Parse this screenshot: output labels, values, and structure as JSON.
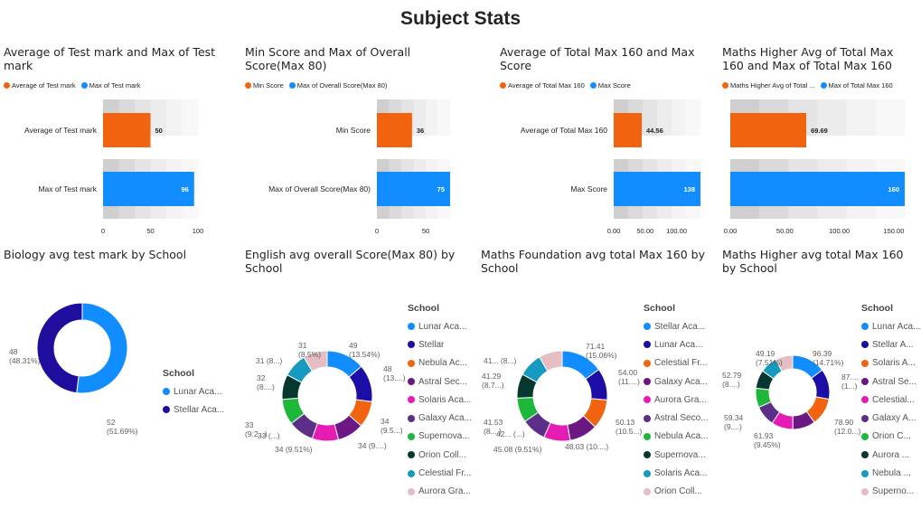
{
  "page_title": "Subject Stats",
  "colors": {
    "orange": "#F2630F",
    "blue": "#118DFF",
    "navy": "#1F0E9E",
    "donut": [
      "#118DFF",
      "#1C0DA6",
      "#F2630F",
      "#6B1884",
      "#E51CB3",
      "#5B2F88",
      "#1DB83A",
      "#06382F",
      "#169AC0",
      "#E5BDC2"
    ]
  },
  "chart_data": [
    {
      "type": "bar",
      "title": "Average of Test mark and Max of Test mark",
      "legend": [
        "Average of Test mark",
        "Max of Test mark"
      ],
      "categories": [
        "Average of Test mark",
        "Max of Test mark"
      ],
      "values": [
        50,
        96
      ],
      "value_labels": [
        "50",
        "96"
      ],
      "ticks": [
        "0",
        "50",
        "100"
      ],
      "tick_values": [
        0,
        50,
        100
      ],
      "xlim": [
        0,
        100
      ],
      "legend_position": "top-left"
    },
    {
      "type": "bar",
      "title": "Min Score and Max of Overall Score(Max 80)",
      "legend": [
        "Min Score",
        "Max of Overall Score(Max 80)"
      ],
      "categories": [
        "Min Score",
        "Max of Overall Score(Max 80)"
      ],
      "values": [
        36,
        75
      ],
      "value_labels": [
        "36",
        "75"
      ],
      "ticks": [
        "0",
        "50"
      ],
      "tick_values": [
        0,
        50
      ],
      "xlim": [
        0,
        75
      ],
      "legend_position": "top-left"
    },
    {
      "type": "bar",
      "title": "Average of Total Max 160 and Max Score",
      "legend": [
        "Average of Total Max 160",
        "Max Score"
      ],
      "categories": [
        "Average of Total Max 160",
        "Max Score"
      ],
      "values": [
        44.56,
        138
      ],
      "value_labels": [
        "44.56",
        "138"
      ],
      "ticks": [
        "0.00",
        "50.00",
        "100.00"
      ],
      "tick_values": [
        0,
        50,
        100
      ],
      "xlim": [
        0,
        138
      ],
      "legend_position": "top-left"
    },
    {
      "type": "bar",
      "title": "Maths Higher Avg of Total Max 160 and Max of Total Max 160",
      "legend": [
        "Maths Higher Avg of Total ...",
        "Max of Total Max 160"
      ],
      "categories": [
        "",
        ""
      ],
      "values": [
        69.69,
        160
      ],
      "value_labels": [
        "69.69",
        "160"
      ],
      "ticks": [
        "0.00",
        "50.00",
        "100.00",
        "150.00"
      ],
      "tick_values": [
        0,
        50,
        100,
        150
      ],
      "xlim": [
        0,
        160
      ],
      "legend_position": "top-left"
    },
    {
      "type": "pie",
      "title": "Biology avg test mark by School",
      "legend_title": "School",
      "legend": [
        "Lunar Aca...",
        "Stellar Aca..."
      ],
      "values": [
        52,
        48
      ],
      "labels": [
        "52\n(51.69%)",
        "48\n(48.31%)"
      ],
      "legend_position": "right"
    },
    {
      "type": "pie",
      "title": "English avg overall Score(Max 80) by School",
      "legend_title": "School",
      "legend": [
        "Lunar Aca...",
        "Stellar",
        "Nebula Ac...",
        "Astral Sec...",
        "Solaris Aca...",
        "Galaxy Aca...",
        "Supernova...",
        "Orion Coll...",
        "Celestial Fr...",
        "Aurora Gra..."
      ],
      "values": [
        49,
        48,
        34,
        34,
        34,
        33,
        33,
        32,
        31,
        31
      ],
      "labels": [
        "49\n(13.54%)",
        "48\n(13....)",
        "34\n(9.5...)",
        "34 (9....)",
        "34 (9.51%)",
        "33 (...)",
        "33\n(9.2...)",
        "32\n(8....)",
        "31 (8...)",
        "31\n(8.5%)"
      ],
      "legend_position": "right"
    },
    {
      "type": "pie",
      "title": "Maths Foundation avg total Max 160 by School",
      "legend_title": "School",
      "legend": [
        "Stellar Aca...",
        "Lunar Aca...",
        "Celestial Fr...",
        "Galaxy Aca...",
        "Aurora Gra...",
        "Astral Seco...",
        "Nebula Aca...",
        "Supernova...",
        "Solaris Aca...",
        "Orion Coll..."
      ],
      "values": [
        71.41,
        54.0,
        50.13,
        48.03,
        45.08,
        42,
        41.53,
        41.29,
        41,
        40
      ],
      "labels": [
        "71.41\n(15.06%)",
        "54.00\n(11....)",
        "50.13\n(10.5...)",
        "48.03 (10....)",
        "45.08 (9.51%)",
        "42... (...)",
        "41.53\n(8....)",
        "41.29\n(8.7...)",
        "41... (8...)",
        ""
      ],
      "legend_position": "right"
    },
    {
      "type": "pie",
      "title": "Maths Higher avg total Max 160 by School",
      "legend_title": "School",
      "legend": [
        "Lunar Aca...",
        "Stellar A...",
        "Solaris A...",
        "Astral Se...",
        "Celestial...",
        "Galaxy A...",
        "Orion C...",
        "Aurora ...",
        "Nebula ...",
        "Superno..."
      ],
      "values": [
        96.39,
        87,
        78.9,
        65,
        61.93,
        59.34,
        55,
        52.79,
        50,
        49.19
      ],
      "labels": [
        "96.39\n(14.71%)",
        "87....\n(1...)",
        "78.90\n(12.0...)",
        "",
        "61.93\n(9.45%)",
        "59.34\n(9....)",
        "",
        "52.79\n(8....)",
        "",
        "49.19\n(7.51%)"
      ],
      "legend_position": "right"
    }
  ]
}
